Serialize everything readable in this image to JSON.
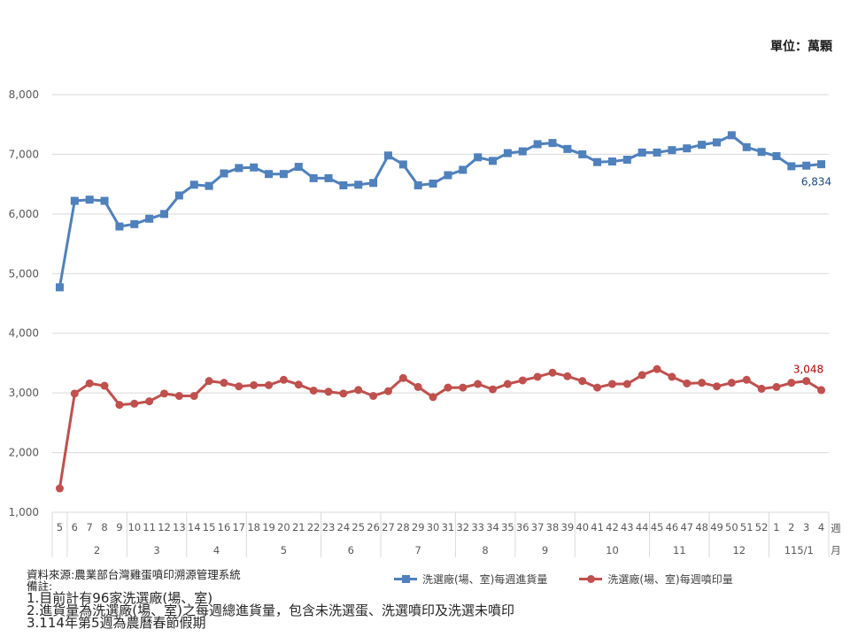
{
  "unit_label": "單位：萬顆",
  "colors": {
    "intake": "#4F81BD",
    "stamped": "#C0504D",
    "stamped_label": "#C00000",
    "intake_label": "#1F497D",
    "grid": "#D9D9D9"
  },
  "legend": {
    "intake": "洗選廠(場、室)每週進貨量",
    "stamped": "洗選廠(場、室)每週噴印量"
  },
  "axis_suffix": {
    "week": "週",
    "month": "月"
  },
  "notes": {
    "source": "資料來源:農業部台灣雞蛋噴印溯源管理系統",
    "remark_title": "備註:",
    "items": [
      "1.目前計有96家洗選廠(場、室)",
      "2.進貨量為洗選廠(場、室)之每週總進貨量，包含未洗選蛋、洗選噴印及洗選未噴印",
      "3.114年第5週為農曆春節假期"
    ]
  },
  "chart_data": {
    "type": "line",
    "title": "",
    "xlabel": "週 / 月",
    "ylabel": "萬顆",
    "ylim": [
      1000,
      8000
    ],
    "yticks": [
      "1,000",
      "2,000",
      "3,000",
      "4,000",
      "5,000",
      "6,000",
      "7,000",
      "8,000"
    ],
    "grid": true,
    "legend_position": "bottom",
    "weeks": [
      "5",
      "6",
      "7",
      "8",
      "9",
      "10",
      "11",
      "12",
      "13",
      "14",
      "15",
      "16",
      "17",
      "18",
      "19",
      "20",
      "21",
      "22",
      "23",
      "24",
      "25",
      "26",
      "27",
      "28",
      "29",
      "30",
      "31",
      "32",
      "33",
      "34",
      "35",
      "36",
      "37",
      "38",
      "39",
      "40",
      "41",
      "42",
      "43",
      "44",
      "45",
      "46",
      "47",
      "48",
      "49",
      "50",
      "51",
      "52",
      "1",
      "2",
      "3",
      "4"
    ],
    "month_groups": [
      {
        "label": "",
        "count": 1
      },
      {
        "label": "2",
        "count": 4
      },
      {
        "label": "3",
        "count": 4
      },
      {
        "label": "4",
        "count": 4
      },
      {
        "label": "5",
        "count": 5
      },
      {
        "label": "6",
        "count": 4
      },
      {
        "label": "7",
        "count": 5
      },
      {
        "label": "8",
        "count": 4
      },
      {
        "label": "9",
        "count": 4
      },
      {
        "label": "10",
        "count": 5
      },
      {
        "label": "11",
        "count": 4
      },
      {
        "label": "12",
        "count": 4
      },
      {
        "label": "115/1",
        "count": 4
      }
    ],
    "series": [
      {
        "name": "洗選廠(場、室)每週進貨量",
        "marker": "square",
        "values": [
          4770,
          6220,
          6240,
          6220,
          5790,
          5830,
          5920,
          6000,
          6310,
          6490,
          6470,
          6680,
          6770,
          6780,
          6670,
          6670,
          6790,
          6600,
          6600,
          6480,
          6490,
          6520,
          6980,
          6830,
          6480,
          6510,
          6650,
          6740,
          6950,
          6890,
          7020,
          7050,
          7170,
          7190,
          7090,
          7000,
          6870,
          6880,
          6910,
          7030,
          7030,
          7070,
          7100,
          7160,
          7200,
          7320,
          7120,
          7040,
          6970,
          6800,
          6810,
          6834
        ],
        "end_label": "6,834"
      },
      {
        "name": "洗選廠(場、室)每週噴印量",
        "marker": "circle",
        "values": [
          1400,
          2990,
          3160,
          3120,
          2800,
          2820,
          2860,
          2990,
          2950,
          2950,
          3200,
          3170,
          3110,
          3130,
          3130,
          3220,
          3140,
          3040,
          3020,
          2990,
          3050,
          2950,
          3030,
          3250,
          3100,
          2930,
          3090,
          3090,
          3150,
          3060,
          3150,
          3210,
          3270,
          3340,
          3280,
          3200,
          3090,
          3150,
          3150,
          3300,
          3400,
          3270,
          3160,
          3170,
          3110,
          3170,
          3220,
          3070,
          3100,
          3170,
          3200,
          3048
        ],
        "end_label": "3,048"
      }
    ]
  }
}
